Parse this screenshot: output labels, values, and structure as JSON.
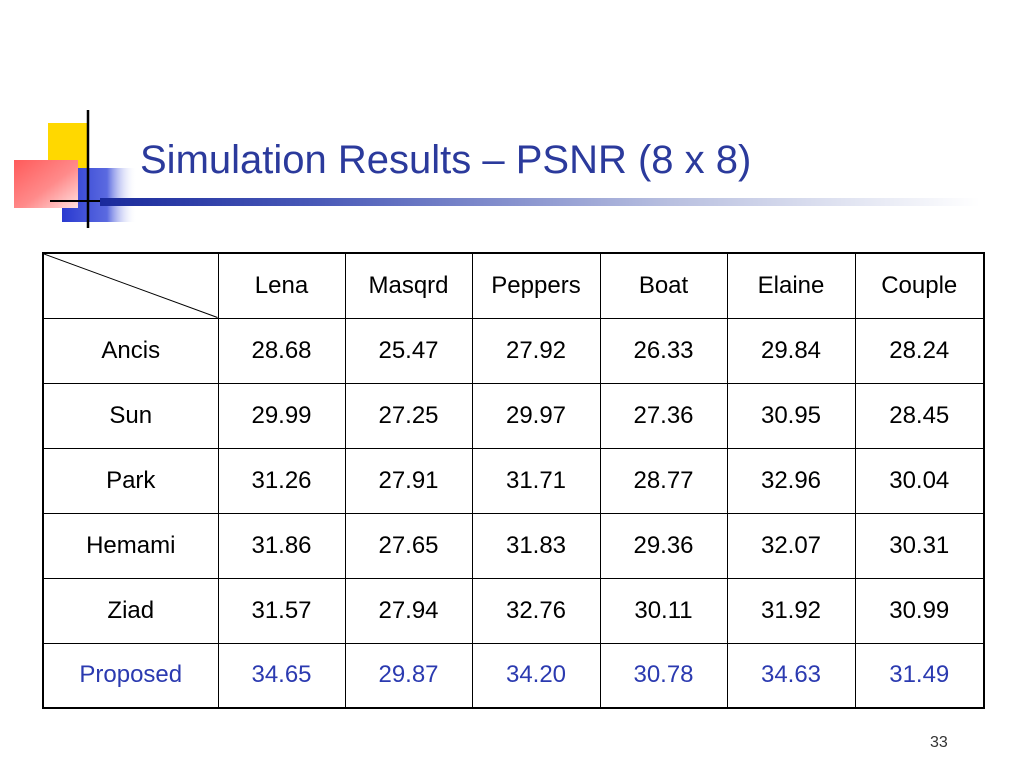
{
  "slide": {
    "title": "Simulation Results – PSNR (8 x 8)",
    "page_number": "33"
  },
  "table": {
    "columns": [
      "Lena",
      "Masqrd",
      "Peppers",
      "Boat",
      "Elaine",
      "Couple"
    ],
    "rows": [
      {
        "label": "Ancis",
        "values": [
          "28.68",
          "25.47",
          "27.92",
          "26.33",
          "29.84",
          "28.24"
        ]
      },
      {
        "label": "Sun",
        "values": [
          "29.99",
          "27.25",
          "29.97",
          "27.36",
          "30.95",
          "28.45"
        ]
      },
      {
        "label": "Park",
        "values": [
          "31.26",
          "27.91",
          "31.71",
          "28.77",
          "32.96",
          "30.04"
        ]
      },
      {
        "label": "Hemami",
        "values": [
          "31.86",
          "27.65",
          "31.83",
          "29.36",
          "32.07",
          "30.31"
        ]
      },
      {
        "label": "Ziad",
        "values": [
          "31.57",
          "27.94",
          "32.76",
          "30.11",
          "31.92",
          "30.99"
        ]
      },
      {
        "label": "Proposed",
        "values": [
          "34.65",
          "29.87",
          "34.20",
          "30.78",
          "34.63",
          "31.49"
        ]
      }
    ],
    "highlight_row": "Proposed",
    "highlight_color": "#2b3ab0"
  },
  "colors": {
    "title": "#2b3a9c",
    "deco_yellow": "#ffd800",
    "deco_red": "#ff3b3b",
    "deco_blue": "#2a3ad0"
  }
}
